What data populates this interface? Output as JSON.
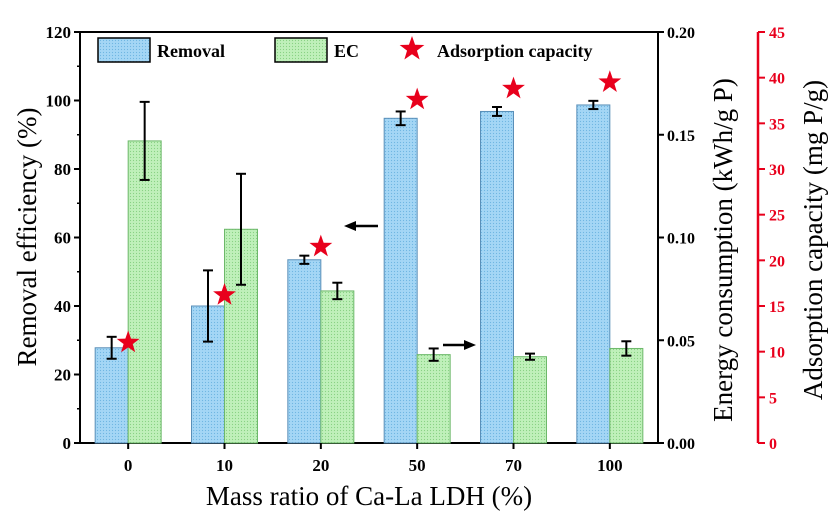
{
  "chart_data": {
    "type": "bar",
    "xlabel": "Mass ratio of Ca-La LDH (%)",
    "categories": [
      "0",
      "10",
      "20",
      "50",
      "70",
      "100"
    ],
    "y_left": {
      "label": "Removal efficiency (%)",
      "lim": [
        0,
        120
      ],
      "ticks": [
        "0",
        "20",
        "40",
        "60",
        "80",
        "100",
        "120"
      ]
    },
    "y_right1": {
      "label": "Energy consumption (kWh/g P)",
      "lim": [
        0,
        0.2
      ],
      "ticks": [
        "0.00",
        "0.05",
        "0.10",
        "0.15",
        "0.20"
      ]
    },
    "y_right2": {
      "label": "Adsorption capacity (mg P/g)",
      "lim": [
        0,
        45
      ],
      "ticks": [
        "0",
        "5",
        "10",
        "15",
        "20",
        "25",
        "30",
        "35",
        "40",
        "45"
      ],
      "color": "#e8001c"
    },
    "series": [
      {
        "name": "Removal",
        "axis": "left",
        "values": [
          27.8,
          40.0,
          53.5,
          94.8,
          96.8,
          98.7
        ],
        "errors": [
          3.2,
          10.4,
          1.2,
          2.0,
          1.3,
          1.2
        ],
        "color": "#9fd3f3"
      },
      {
        "name": "EC",
        "axis": "right1",
        "values": [
          0.147,
          0.104,
          0.074,
          0.043,
          0.042,
          0.046
        ],
        "errors": [
          0.019,
          0.027,
          0.004,
          0.003,
          0.0015,
          0.0035
        ],
        "color": "#b7ecb2"
      },
      {
        "name": "Adsorption capacity",
        "axis": "right2",
        "values": [
          11.0,
          16.2,
          21.5,
          37.6,
          38.8,
          39.5
        ],
        "color": "#e8001c",
        "marker": "star"
      }
    ],
    "annotations": [
      {
        "type": "arrow",
        "direction": "left",
        "points_to": "left-axis"
      },
      {
        "type": "arrow",
        "direction": "right",
        "points_to": "right-axis"
      }
    ],
    "legend": "top"
  }
}
